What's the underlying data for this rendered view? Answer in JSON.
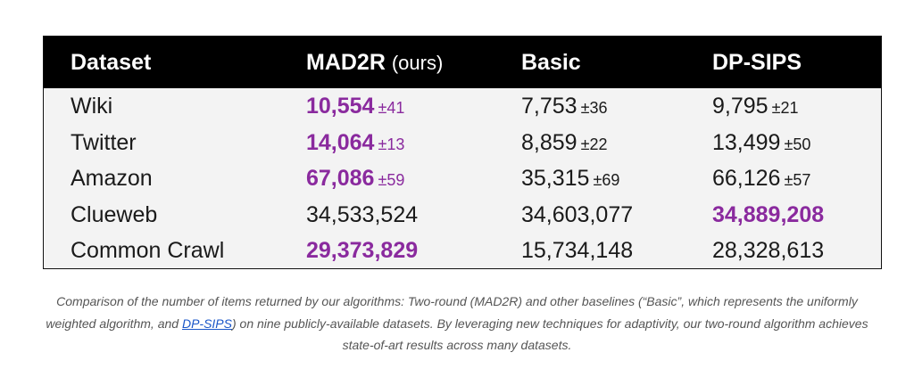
{
  "table": {
    "headers": [
      "Dataset",
      "MAD2R",
      "Basic",
      "DP-SIPS"
    ],
    "headers_suffix": "(ours)",
    "rows": [
      {
        "dataset": "Wiki",
        "mad2r": {
          "value": "10,554",
          "pm": "±41"
        },
        "basic": {
          "value": "7,753",
          "pm": "±36"
        },
        "dpsips": {
          "value": "9,795",
          "pm": "±21"
        }
      },
      {
        "dataset": "Twitter",
        "mad2r": {
          "value": "14,064",
          "pm": "±13"
        },
        "basic": {
          "value": "8,859",
          "pm": "±22"
        },
        "dpsips": {
          "value": "13,499",
          "pm": "±50"
        }
      },
      {
        "dataset": "Amazon",
        "mad2r": {
          "value": "67,086",
          "pm": "±59"
        },
        "basic": {
          "value": "35,315",
          "pm": "±69"
        },
        "dpsips": {
          "value": "66,126",
          "pm": "±57"
        }
      },
      {
        "dataset": "Clueweb",
        "mad2r": {
          "value": "34,533,524",
          "pm": ""
        },
        "basic": {
          "value": "34,603,077",
          "pm": ""
        },
        "dpsips": {
          "value": "34,889,208",
          "pm": ""
        }
      },
      {
        "dataset": "Common Crawl",
        "mad2r": {
          "value": "29,373,829",
          "pm": ""
        },
        "basic": {
          "value": "15,734,148",
          "pm": ""
        },
        "dpsips": {
          "value": "28,328,613",
          "pm": ""
        }
      }
    ],
    "highlight_color": "#8a2a9e",
    "header_bg": "#000000",
    "row_bg": "#f3f3f3"
  },
  "caption": {
    "part1": "Comparison of the number of items returned by our algorithms: Two-round (MAD2R) and other baselines (“Basic”, which represents the uniformly weighted algorithm, and ",
    "link_text": "DP-SIPS",
    "part2": ") on nine publicly-available datasets. By leveraging new techniques for adaptivity, our two-round algorithm achieves state-of-art results across many datasets."
  }
}
